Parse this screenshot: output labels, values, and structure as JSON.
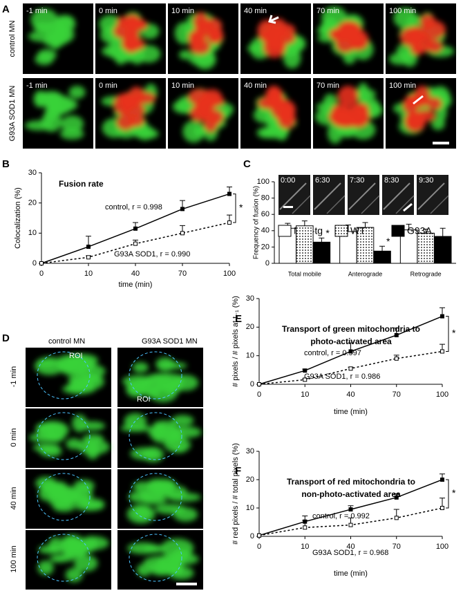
{
  "panel_labels": [
    "A",
    "B",
    "C",
    "D",
    "E",
    "F"
  ],
  "panel_a": {
    "rows": [
      "control MN",
      "G93A SOD1 MN"
    ],
    "times": [
      "-1 min",
      "0 min",
      "10 min",
      "40 min",
      "70 min",
      "100 min"
    ]
  },
  "panel_c_images": [
    "0:00",
    "6:30",
    "7:30",
    "8:30",
    "9:30"
  ],
  "panel_d": {
    "columns": [
      "control MN",
      "G93A SOD1 MN"
    ],
    "rows": [
      "-1 min",
      "0 min",
      "40 min",
      "100 min"
    ],
    "roi": "ROI"
  },
  "chart_data": [
    {
      "type": "line",
      "title": [
        "Fusion rate"
      ],
      "xlabel": "time (min)",
      "ylabel": "Colocalization (%)",
      "categories": [
        "0",
        "10",
        "40",
        "70",
        "100"
      ],
      "ylim": [
        0,
        30
      ],
      "yticks": [
        0,
        10,
        20,
        30
      ],
      "significance": "*",
      "series": [
        {
          "name": "control, r = 0.998",
          "color": "#000",
          "marker": "filled",
          "dashed": false,
          "values": [
            0,
            5.5,
            11.5,
            18,
            23
          ],
          "errors": [
            0,
            3.5,
            2,
            2.8,
            2.3
          ]
        },
        {
          "name": "G93A SOD1, r = 0.990",
          "color": "#000",
          "marker": "open",
          "dashed": true,
          "values": [
            0,
            2,
            6.5,
            10,
            13.5
          ],
          "errors": [
            0,
            0.5,
            1.2,
            2.5,
            2.5
          ]
        }
      ]
    },
    {
      "type": "bar",
      "ylabel": "Frequency of fusion (%)",
      "categories": [
        "Total mobile",
        "Anterograde",
        "Retrograde"
      ],
      "ylim": [
        0,
        100
      ],
      "yticks": [
        0,
        20,
        40,
        60,
        80,
        100
      ],
      "significance": [
        "*",
        "*",
        null
      ],
      "series": [
        {
          "name": "Non-tg",
          "color": "#fff",
          "pattern": "none",
          "values": [
            43,
            39,
            41
          ],
          "errors": [
            6,
            8,
            7
          ]
        },
        {
          "name": "WT",
          "color": "#fff",
          "pattern": "dots",
          "values": [
            46,
            44,
            37
          ],
          "errors": [
            6,
            6,
            5
          ]
        },
        {
          "name": "G93A",
          "color": "#000",
          "pattern": "none",
          "values": [
            26,
            15,
            33
          ],
          "errors": [
            5,
            6,
            10
          ]
        }
      ]
    },
    {
      "type": "line",
      "title": [
        "Transport of green mitochondria to",
        "photo-activated area"
      ],
      "xlabel": "time (min)",
      "ylabel": "# pixels / # pixels at t₋₁ (%)",
      "categories": [
        "0",
        "10",
        "40",
        "70",
        "100"
      ],
      "ylim": [
        0,
        30
      ],
      "yticks": [
        0,
        10,
        20,
        30
      ],
      "significance": "*",
      "series": [
        {
          "name": "control, r = 0.997",
          "color": "#000",
          "marker": "filled",
          "dashed": false,
          "values": [
            0,
            4.8,
            11.5,
            17.2,
            23.8
          ],
          "errors": [
            0,
            0.5,
            3,
            2.5,
            3
          ]
        },
        {
          "name": "G93A SOD1, r = 0.986",
          "color": "#000",
          "marker": "open",
          "dashed": true,
          "values": [
            0,
            1.6,
            5.5,
            9,
            11.5
          ],
          "errors": [
            0,
            0.3,
            0.5,
            1.2,
            2.5
          ]
        }
      ]
    },
    {
      "type": "line",
      "title": [
        "Transport of red mitochondria to",
        "non-photo-activated area"
      ],
      "xlabel": "time (min)",
      "ylabel": "# red pixels / # total pixels (%)",
      "categories": [
        "0",
        "10",
        "40",
        "70",
        "100"
      ],
      "ylim": [
        0,
        30
      ],
      "yticks": [
        0,
        10,
        20,
        30
      ],
      "significance": "*",
      "series": [
        {
          "name": "control, r = 0.992",
          "color": "#000",
          "marker": "filled",
          "dashed": false,
          "values": [
            0.3,
            5.2,
            9.5,
            13.7,
            20
          ],
          "errors": [
            0,
            2,
            1.3,
            1.3,
            2
          ]
        },
        {
          "name": "G93A SOD1, r = 0.968",
          "color": "#000",
          "marker": "open",
          "dashed": true,
          "values": [
            0.3,
            3.1,
            4,
            6.5,
            10
          ],
          "errors": [
            0,
            2.5,
            2.5,
            3,
            3.5
          ]
        }
      ]
    }
  ]
}
